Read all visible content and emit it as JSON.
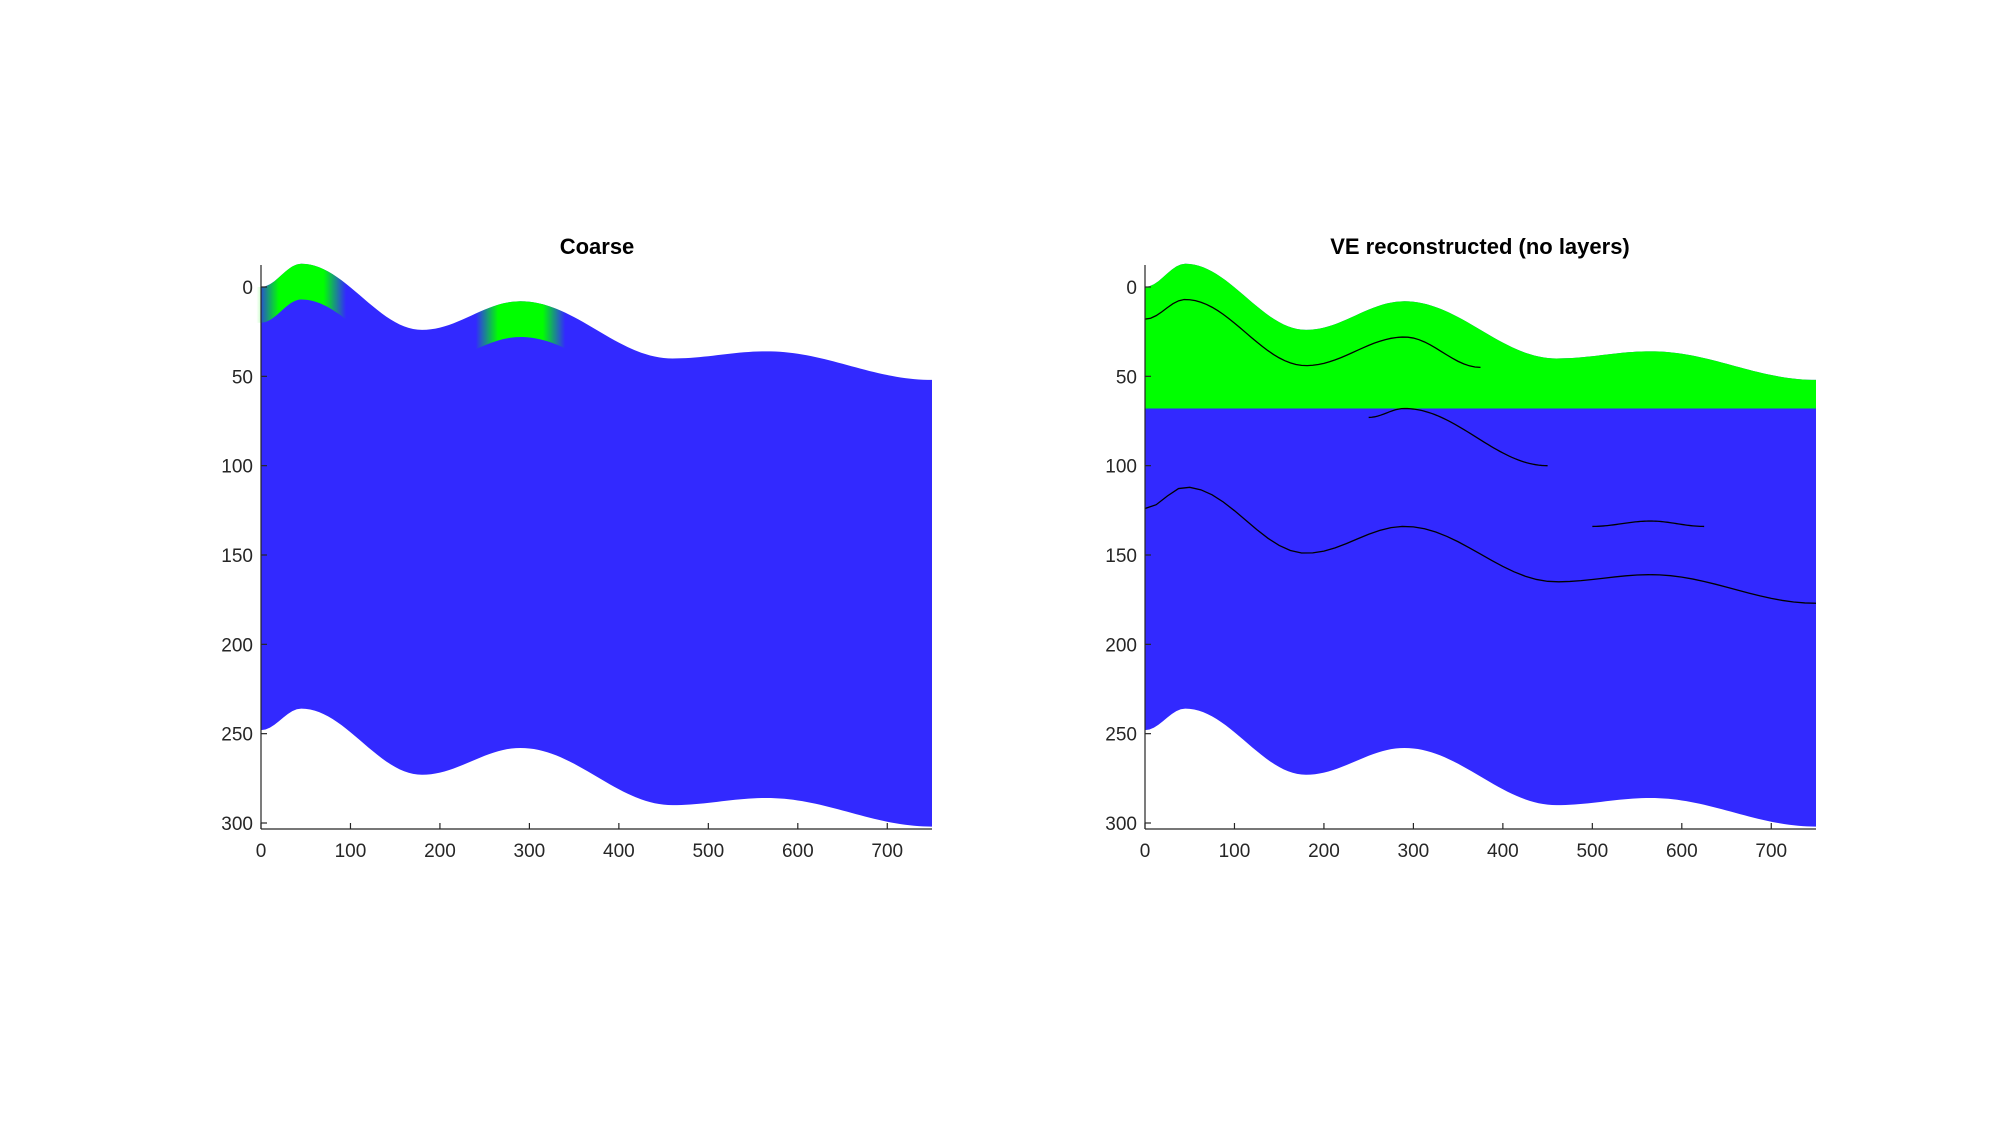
{
  "colors": {
    "blue": "#3229ff",
    "green": "#00ff00",
    "axis": "#262626",
    "trace": "#000000"
  },
  "chart_data": [
    {
      "type": "area",
      "title": "Coarse",
      "xlabel": "",
      "ylabel": "",
      "xlim": [
        0,
        750
      ],
      "ylim": [
        300,
        0
      ],
      "y_reversed": true,
      "grid": false,
      "xticks": [
        "0",
        "100",
        "200",
        "300",
        "400",
        "500",
        "600",
        "700"
      ],
      "yticks": [
        "0",
        "50",
        "100",
        "150",
        "200",
        "250",
        "300"
      ],
      "top_surface": {
        "x": [
          0,
          45,
          180,
          290,
          460,
          565,
          750
        ],
        "y": [
          0,
          -13,
          24,
          8,
          40,
          36,
          52
        ]
      },
      "bottom_surface": {
        "x": [
          0,
          45,
          180,
          290,
          460,
          565,
          750
        ],
        "y": [
          248,
          236,
          273,
          258,
          290,
          286,
          302
        ]
      },
      "green_caps": [
        {
          "x_center": 45,
          "thickness": 20
        },
        {
          "x_center": 290,
          "thickness": 20
        }
      ]
    },
    {
      "type": "area",
      "title": "VE reconstructed (no layers)",
      "xlabel": "",
      "ylabel": "",
      "xlim": [
        0,
        750
      ],
      "ylim": [
        300,
        0
      ],
      "y_reversed": true,
      "grid": false,
      "xticks": [
        "0",
        "100",
        "200",
        "300",
        "400",
        "500",
        "600",
        "700"
      ],
      "yticks": [
        "0",
        "50",
        "100",
        "150",
        "200",
        "250",
        "300"
      ],
      "top_surface": {
        "x": [
          0,
          45,
          180,
          290,
          460,
          565,
          750
        ],
        "y": [
          0,
          -13,
          24,
          8,
          40,
          36,
          52
        ]
      },
      "bottom_surface": {
        "x": [
          0,
          45,
          180,
          290,
          460,
          565,
          750
        ],
        "y": [
          248,
          236,
          273,
          258,
          290,
          286,
          302
        ]
      },
      "green_bottom": 68,
      "traces": [
        {
          "x": [
            0,
            45,
            180,
            290,
            375
          ],
          "y": [
            18,
            7,
            44,
            28,
            45
          ]
        },
        {
          "x": [
            250,
            290,
            450
          ],
          "y": [
            73,
            68,
            100
          ]
        },
        {
          "x": [
            0,
            45,
            180,
            290,
            460,
            565,
            750
          ],
          "y": [
            124,
            112,
            149,
            134,
            165,
            161,
            177
          ]
        },
        {
          "x": [
            500,
            565,
            625
          ],
          "y": [
            134,
            131,
            134
          ]
        }
      ]
    }
  ]
}
